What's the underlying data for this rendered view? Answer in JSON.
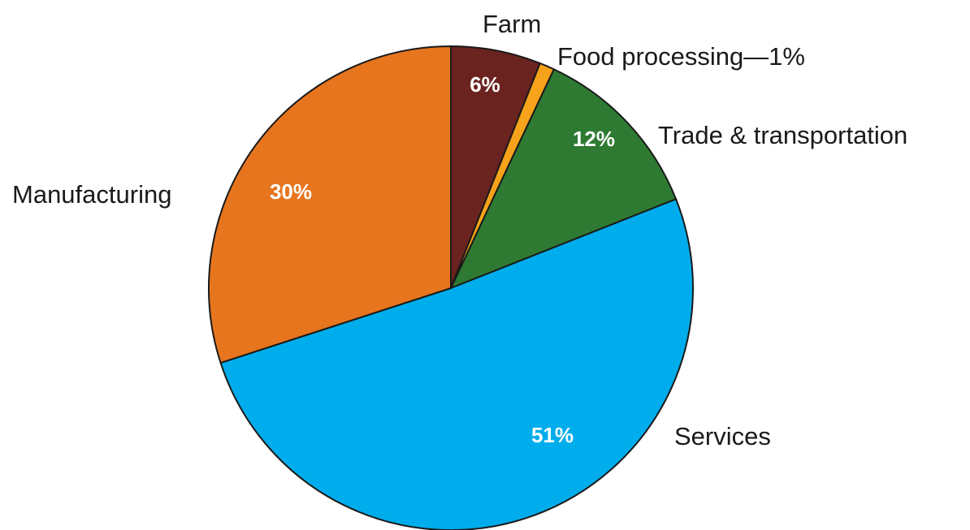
{
  "chart_data": {
    "type": "pie",
    "title": "",
    "slices": [
      {
        "label": "Farm",
        "value": 6,
        "value_label": "6%",
        "color": "#6b231f"
      },
      {
        "label": "Food processing",
        "value": 1,
        "value_label": "",
        "color": "#f6a21a"
      },
      {
        "label": "Trade & transportation",
        "value": 12,
        "value_label": "12%",
        "color": "#2e7a32"
      },
      {
        "label": "Services",
        "value": 51,
        "value_label": "51%",
        "color": "#00adec"
      },
      {
        "label": "Manufacturing",
        "value": 30,
        "value_label": "30%",
        "color": "#e6751e"
      }
    ],
    "food_processing_annotation": "Food processing—1%",
    "start": "12 o'clock",
    "direction": "clockwise",
    "legend": "none (labels placed beside slices)"
  }
}
